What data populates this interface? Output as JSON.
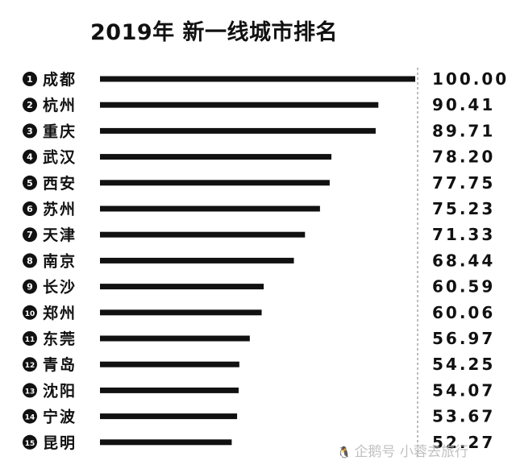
{
  "chart_data": {
    "type": "bar",
    "orientation": "horizontal",
    "title": "2019年 新一线城市排名",
    "categories": [
      "成都",
      "杭州",
      "重庆",
      "武汉",
      "西安",
      "苏州",
      "天津",
      "南京",
      "长沙",
      "郑州",
      "东莞",
      "青岛",
      "沈阳",
      "宁波",
      "昆明"
    ],
    "ranks": [
      "1",
      "2",
      "3",
      "4",
      "5",
      "6",
      "7",
      "8",
      "9",
      "10",
      "11",
      "12",
      "13",
      "14",
      "15"
    ],
    "values": [
      100.0,
      90.41,
      89.71,
      78.2,
      77.75,
      75.23,
      71.33,
      68.44,
      60.59,
      60.06,
      56.97,
      54.25,
      54.07,
      53.67,
      52.27
    ],
    "value_labels": [
      "100.00",
      "90.41",
      "89.71",
      "78.20",
      "77.75",
      "75.23",
      "71.33",
      "68.44",
      "60.59",
      "60.06",
      "56.97",
      "54.25",
      "54.07",
      "53.67",
      "52.27"
    ],
    "xlim": [
      18,
      100
    ],
    "grid": false,
    "legend": "none"
  },
  "colors": {
    "bar": "#111111",
    "badge": "#111111",
    "badge_text": "#ffffff",
    "separator": "#999999"
  },
  "watermark": {
    "text": "企鹅号 小蓉去旅行",
    "icon": "penguin-icon"
  }
}
